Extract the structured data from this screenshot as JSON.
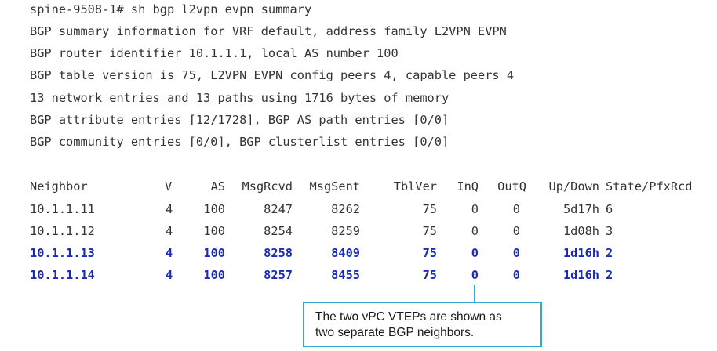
{
  "terminal": {
    "command_line": "spine-9508-1# sh bgp l2vpn evpn summary",
    "info_lines": [
      "BGP summary information for VRF default, address family L2VPN EVPN",
      "BGP router identifier 10.1.1.1, local AS number 100",
      "BGP table version is 75, L2VPN EVPN config peers 4, capable peers 4",
      "13 network entries and 13 paths using 1716 bytes of memory",
      "BGP attribute entries [12/1728], BGP AS path entries [0/0]",
      "BGP community entries [0/0], BGP clusterlist entries [0/0]"
    ]
  },
  "neighbor_table": {
    "headers": {
      "neighbor": "Neighbor",
      "v": "V",
      "as": "AS",
      "msgrcvd": "MsgRcvd",
      "msgsent": "MsgSent",
      "tblver": "TblVer",
      "inq": "InQ",
      "outq": "OutQ",
      "updown": "Up/Down",
      "state": "State/PfxRcd"
    },
    "rows": [
      {
        "neighbor": "10.1.1.11",
        "v": "4",
        "as": "100",
        "msgrcvd": "8247",
        "msgsent": "8262",
        "tblver": "75",
        "inq": "0",
        "outq": "0",
        "updown": "5d17h",
        "state": "6",
        "highlight": false
      },
      {
        "neighbor": "10.1.1.12",
        "v": "4",
        "as": "100",
        "msgrcvd": "8254",
        "msgsent": "8259",
        "tblver": "75",
        "inq": "0",
        "outq": "0",
        "updown": "1d08h",
        "state": "3",
        "highlight": false
      },
      {
        "neighbor": "10.1.1.13",
        "v": "4",
        "as": "100",
        "msgrcvd": "8258",
        "msgsent": "8409",
        "tblver": "75",
        "inq": "0",
        "outq": "0",
        "updown": "1d16h",
        "state": "2",
        "highlight": true
      },
      {
        "neighbor": "10.1.1.14",
        "v": "4",
        "as": "100",
        "msgrcvd": "8257",
        "msgsent": "8455",
        "tblver": "75",
        "inq": "0",
        "outq": "0",
        "updown": "1d16h",
        "state": "2",
        "highlight": true
      }
    ]
  },
  "callout": {
    "line1": "The two vPC VTEPs are shown as",
    "line2": "two separate BGP neighbors."
  },
  "colors": {
    "text": "#333333",
    "highlight": "#1a2bb5",
    "callout_border": "#33a8d6"
  }
}
